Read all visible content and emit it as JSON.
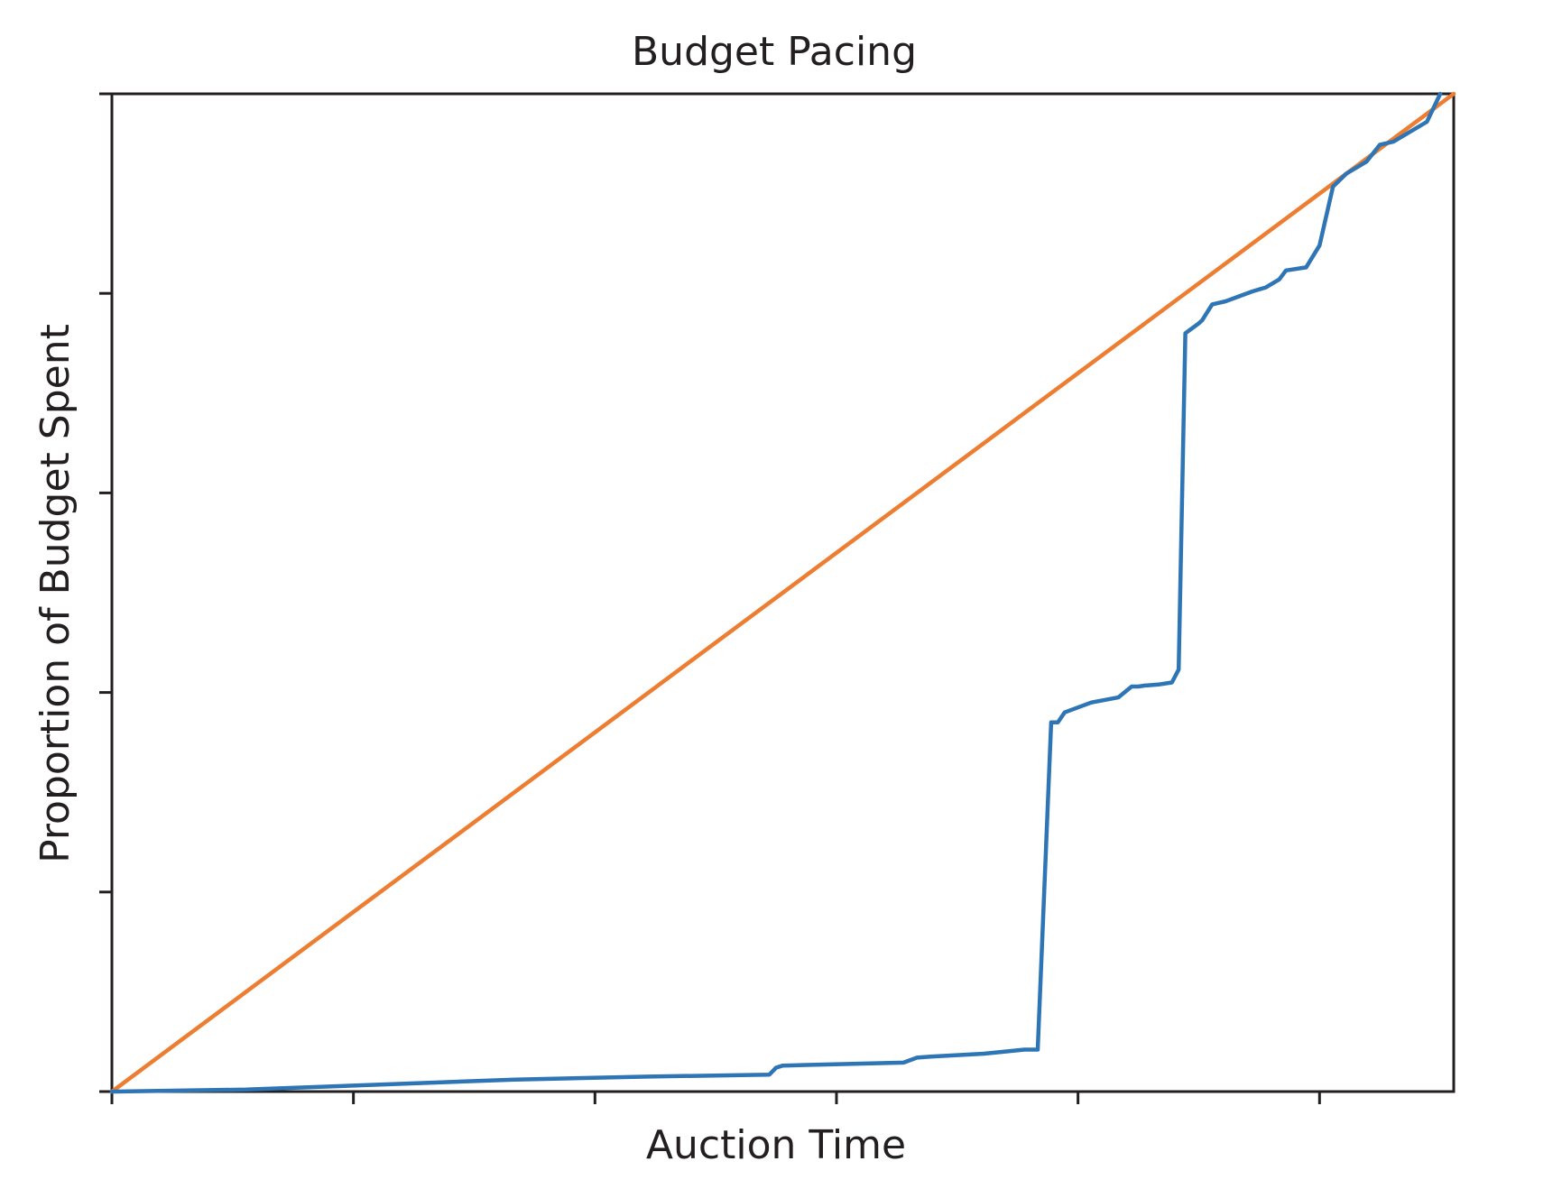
{
  "chart_data": {
    "type": "line",
    "title": "Budget Pacing",
    "xlabel": "Auction Time",
    "ylabel": "Proportion of Budget Spent",
    "xlim": [
      0,
      1
    ],
    "ylim": [
      0,
      1
    ],
    "grid": false,
    "x_ticks": [
      0,
      0.18,
      0.36,
      0.54,
      0.72,
      0.9
    ],
    "y_ticks": [
      0,
      0.2,
      0.4,
      0.6,
      0.8,
      1.0
    ],
    "tick_labels_shown": false,
    "series": [
      {
        "color": "#2e75b6",
        "x": [
          0,
          0.1,
          0.2,
          0.3,
          0.4,
          0.49,
          0.495,
          0.5,
          0.59,
          0.6,
          0.61,
          0.65,
          0.68,
          0.69,
          0.7,
          0.705,
          0.71,
          0.72,
          0.73,
          0.75,
          0.76,
          0.765,
          0.77,
          0.78,
          0.79,
          0.795,
          0.8,
          0.81,
          0.8125,
          0.82,
          0.83,
          0.85,
          0.86,
          0.87,
          0.875,
          0.89,
          0.9,
          0.91,
          0.92,
          0.935,
          0.945,
          0.955,
          0.98,
          0.99
        ],
        "y": [
          0,
          0.002,
          0.007,
          0.012,
          0.015,
          0.017,
          0.024,
          0.026,
          0.029,
          0.034,
          0.035,
          0.038,
          0.042,
          0.042,
          0.37,
          0.37,
          0.38,
          0.385,
          0.39,
          0.395,
          0.406,
          0.406,
          0.407,
          0.408,
          0.41,
          0.423,
          0.76,
          0.77,
          0.773,
          0.789,
          0.792,
          0.802,
          0.806,
          0.814,
          0.823,
          0.826,
          0.848,
          0.907,
          0.92,
          0.932,
          0.949,
          0.952,
          0.972,
          1.0
        ]
      },
      {
        "color": "#ed7d31",
        "x": [
          0,
          1
        ],
        "y": [
          0,
          1
        ]
      }
    ]
  }
}
